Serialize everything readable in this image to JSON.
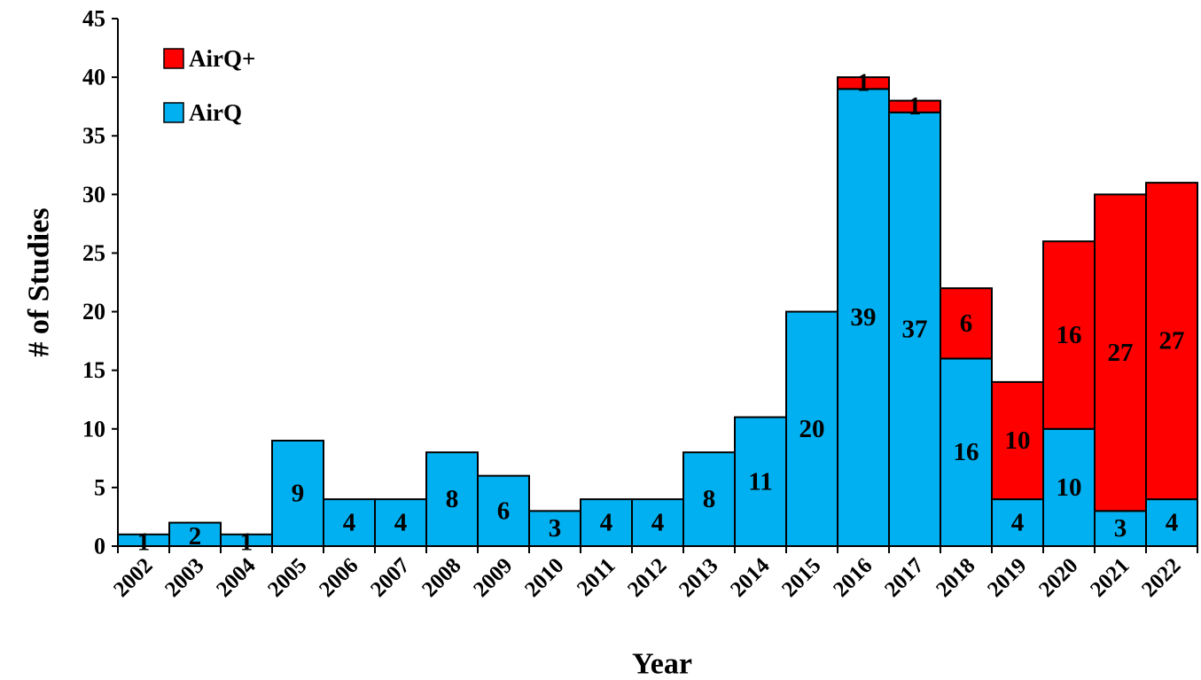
{
  "chart_data": {
    "type": "bar",
    "stacked": true,
    "categories": [
      "2002",
      "2003",
      "2004",
      "2005",
      "2006",
      "2007",
      "2008",
      "2009",
      "2010",
      "2011",
      "2012",
      "2013",
      "2014",
      "2015",
      "2016",
      "2017",
      "2018",
      "2019",
      "2020",
      "2021",
      "2022"
    ],
    "series": [
      {
        "name": "AirQ",
        "color": "#00b0f0",
        "values": [
          1,
          2,
          1,
          9,
          4,
          4,
          8,
          6,
          3,
          4,
          4,
          8,
          11,
          20,
          39,
          37,
          16,
          4,
          10,
          3,
          4
        ],
        "labels": [
          "1",
          "2",
          "1",
          "9",
          "4",
          "4",
          "8",
          "6",
          "3",
          "4",
          "4",
          "8",
          "11",
          "20",
          "39",
          "37",
          "16",
          "4",
          "10",
          "3",
          "4"
        ]
      },
      {
        "name": "AirQ+",
        "color": "#ff0000",
        "values": [
          0,
          0,
          0,
          0,
          0,
          0,
          0,
          0,
          0,
          0,
          0,
          0,
          0,
          0,
          1,
          1,
          6,
          10,
          16,
          27,
          27
        ],
        "labels": [
          "",
          "",
          "",
          "",
          "",
          "",
          "",
          "",
          "",
          "",
          "",
          "",
          "",
          "",
          "1",
          "1",
          "6",
          "10",
          "16",
          "27",
          "27"
        ]
      }
    ],
    "xlabel": "Year",
    "ylabel": "# of Studies",
    "ylim": [
      0,
      45
    ],
    "yticks": [
      "0",
      "5",
      "10",
      "15",
      "20",
      "25",
      "30",
      "35",
      "40",
      "45"
    ],
    "legend_position": "top-left",
    "grid": false
  }
}
